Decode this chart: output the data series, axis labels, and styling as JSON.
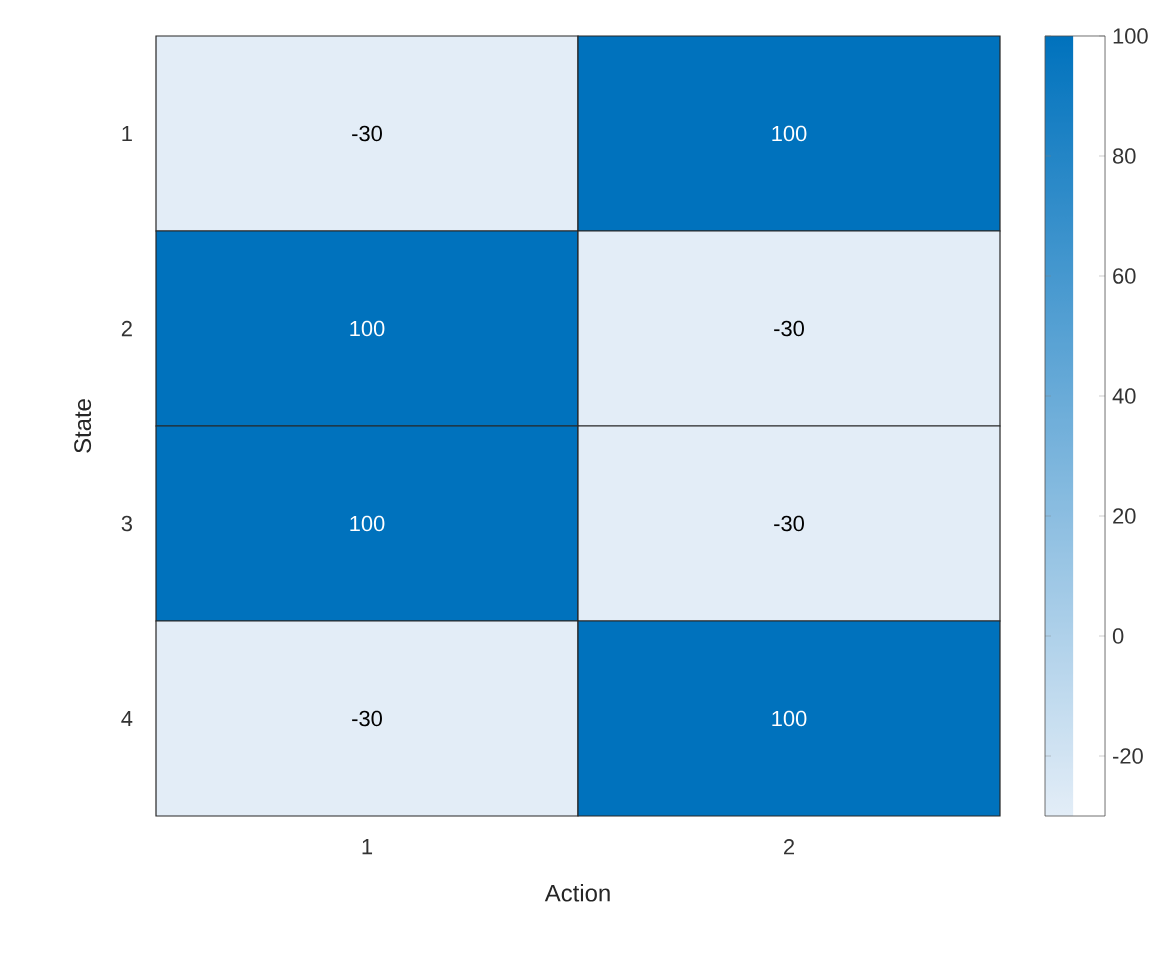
{
  "chart_data": {
    "type": "heatmap",
    "xlabel": "Action",
    "ylabel": "State",
    "categories": [
      "1",
      "2"
    ],
    "y_categories": [
      "1",
      "2",
      "3",
      "4"
    ],
    "cells": [
      [
        -30,
        100
      ],
      [
        100,
        -30
      ],
      [
        100,
        -30
      ],
      [
        -30,
        100
      ]
    ],
    "data_labels": true,
    "colors": [
      "#e3edf7",
      "#0072bd"
    ],
    "clim": [
      -30,
      100
    ],
    "cticks": [
      -20,
      0,
      20,
      40,
      60,
      80,
      100
    ]
  }
}
